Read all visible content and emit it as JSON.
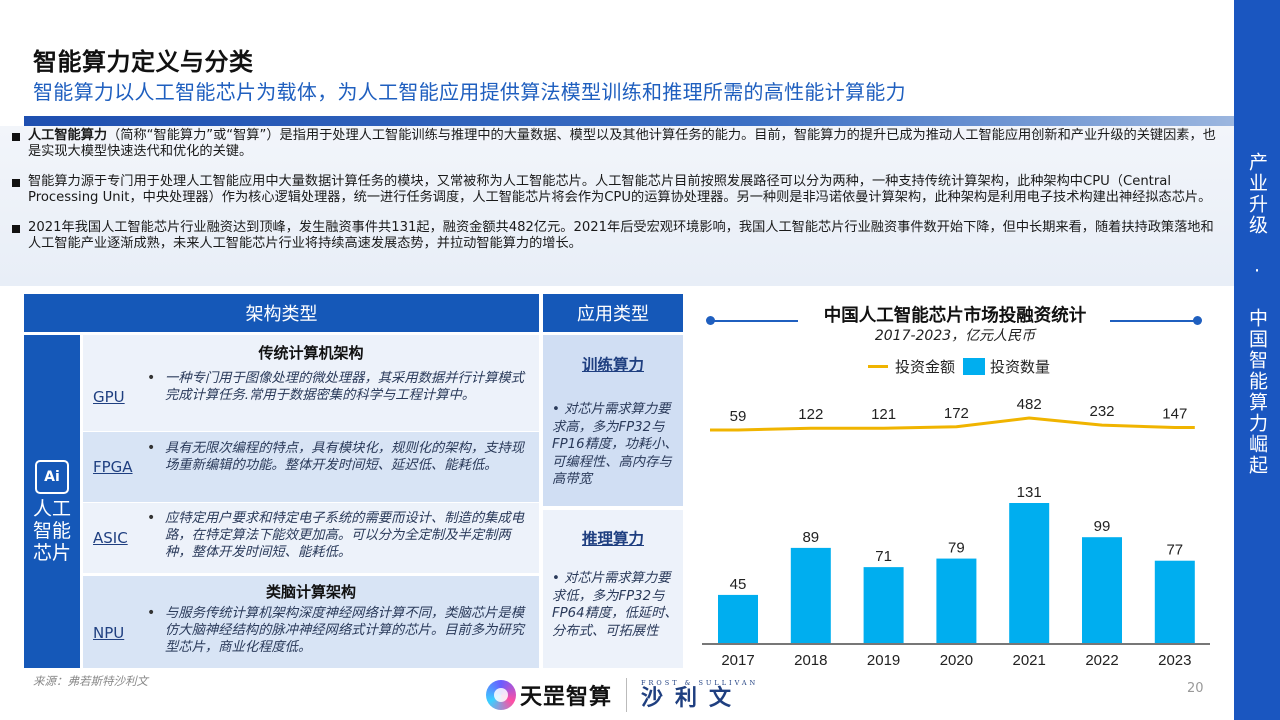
{
  "header": {
    "title": "智能算力定义与分类",
    "subtitle": "智能算力以人工智能芯片为载体，为人工智能应用提供算法模型训练和推理所需的高性能计算能力"
  },
  "sidebar": {
    "text": "产业升级 · 中国智能算力崛起"
  },
  "bullets": [
    {
      "bold": "人工智能算力",
      "text": "（简称“智能算力”或“智算”）是指用于处理人工智能训练与推理中的大量数据、模型以及其他计算任务的能力。目前，智能算力的提升已成为推动人工智能应用创新和产业升级的关键因素，也是实现大模型快速迭代和优化的关键。"
    },
    {
      "bold": "",
      "text": "智能算力源于专门用于处理人工智能应用中大量数据计算任务的模块，又常被称为人工智能芯片。人工智能芯片目前按照发展路径可以分为两种，一种支持传统计算架构，此种架构中CPU（Central Processing Unit，中央处理器）作为核心逻辑处理器，统一进行任务调度，人工智能芯片将会作为CPU的运算协处理器。另一种则是非冯诺依曼计算架构，此种架构是利用电子技术构建出神经拟态芯片。"
    },
    {
      "bold": "",
      "text": "2021年我国人工智能芯片行业融资达到顶峰，发生融资事件共131起，融资金额共482亿元。2021年后受宏观环境影响，我国人工智能芯片行业融资事件数开始下降，但中长期来看，随着扶持政策落地和人工智能产业逐渐成熟，未来人工智能芯片行业将持续高速发展态势，并拉动智能算力的增长。"
    }
  ],
  "table": {
    "arch_header": "架构类型",
    "app_header": "应用类型",
    "left_icon": "Ai",
    "left_label": "人工智能芯片",
    "traditional_header": "传统计算机架构",
    "neuro_header": "类脑计算架构",
    "rows": [
      {
        "name": "GPU",
        "desc": "一种专门用于图像处理的微处理器，其采用数据并行计算模式完成计算任务.常用于数据密集的科学与工程计算中。"
      },
      {
        "name": "FPGA",
        "desc": "具有无限次编程的特点，具有模块化，规则化的架构，支持现场重新编辑的功能。整体开发时间短、延迟低、能耗低。"
      },
      {
        "name": "ASIC",
        "desc": "应特定用户要求和特定电子系统的需要而设计、制造的集成电路，在特定算法下能效更加高。可以分为全定制及半定制两种，整体开发时间短、能耗低。"
      },
      {
        "name": "NPU",
        "desc": "与服务传统计算机架构深度神经网络计算不同，类脑芯片是模仿大脑神经结构的脉冲神经网络式计算的芯片。目前多为研究型芯片，商业化程度低。"
      }
    ],
    "apps": [
      {
        "title": "训练算力",
        "desc": "•   对芯片需求算力要求高，多为FP32与FP16精度，功耗小、可编程性、高内存与高带宽"
      },
      {
        "title": "推理算力",
        "desc": "•   对芯片需求算力要求低，多为FP32与FP64精度，低延时、分布式、可拓展性"
      }
    ]
  },
  "chart_data": {
    "type": "bar",
    "title": "中国人工智能芯片市场投融资统计",
    "subtitle": "2017-2023，亿元人民币",
    "categories": [
      "2017",
      "2018",
      "2019",
      "2020",
      "2021",
      "2022",
      "2023"
    ],
    "series": [
      {
        "name": "投资数量",
        "type": "bar",
        "color": "#00AEEF",
        "values": [
          45,
          89,
          71,
          79,
          131,
          99,
          77
        ]
      },
      {
        "name": "投资金额",
        "type": "line",
        "color": "#F0B400",
        "values": [
          59,
          122,
          121,
          172,
          482,
          232,
          147
        ]
      }
    ],
    "legend": [
      "投资金额",
      "投资数量"
    ],
    "legend_position": "top",
    "grid": false,
    "xlabel": "",
    "ylabel": ""
  },
  "footer": {
    "source": "来源：弗若斯特沙利文",
    "logo1": "天罡智算",
    "logo2_en": "FROST & SULLIVAN",
    "logo2_zh": "沙利文",
    "page": "20"
  }
}
